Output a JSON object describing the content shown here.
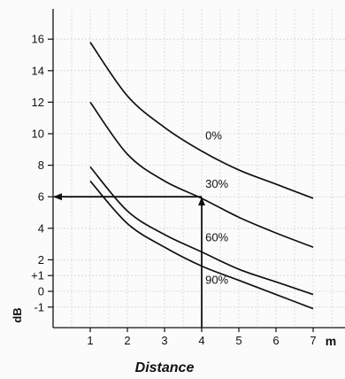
{
  "chart_data": {
    "type": "line",
    "title": "",
    "xlabel": "Distance",
    "x_unit": "m",
    "ylabel": "dB",
    "xlim": [
      0,
      7
    ],
    "ylim": [
      -2,
      17
    ],
    "x_ticks": [
      {
        "value": 1,
        "label": "1"
      },
      {
        "value": 2,
        "label": "2"
      },
      {
        "value": 3,
        "label": "3"
      },
      {
        "value": 4,
        "label": "4"
      },
      {
        "value": 5,
        "label": "5"
      },
      {
        "value": 6,
        "label": "6"
      },
      {
        "value": 7,
        "label": "7"
      }
    ],
    "y_ticks": [
      {
        "value": 16,
        "label": "16"
      },
      {
        "value": 14,
        "label": "14"
      },
      {
        "value": 12,
        "label": "12"
      },
      {
        "value": 10,
        "label": "10"
      },
      {
        "value": 8,
        "label": "8"
      },
      {
        "value": 6,
        "label": "6"
      },
      {
        "value": 4,
        "label": "4"
      },
      {
        "value": 2,
        "label": "2"
      },
      {
        "value": 1,
        "label": "+1"
      },
      {
        "value": 0,
        "label": "0"
      },
      {
        "value": -1,
        "label": "-1"
      }
    ],
    "grid": true,
    "series": [
      {
        "name": "0%",
        "x": [
          1,
          2,
          3,
          4,
          5,
          6,
          7
        ],
        "y": [
          15.8,
          12.4,
          10.4,
          8.9,
          7.7,
          6.8,
          5.9
        ]
      },
      {
        "name": "30%",
        "x": [
          1,
          2,
          3,
          4,
          5,
          6,
          7
        ],
        "y": [
          12.0,
          8.7,
          7.0,
          5.9,
          4.7,
          3.7,
          2.8
        ]
      },
      {
        "name": "60%",
        "x": [
          1,
          2,
          3,
          4,
          5,
          6,
          7
        ],
        "y": [
          7.9,
          5.1,
          3.6,
          2.5,
          1.4,
          0.6,
          -0.2
        ]
      },
      {
        "name": "90%",
        "x": [
          1,
          2,
          3,
          4,
          5,
          6,
          7
        ],
        "y": [
          7.0,
          4.3,
          2.8,
          1.6,
          0.7,
          -0.2,
          -1.1
        ]
      }
    ],
    "annotations": {
      "vertical_arrow": {
        "x": 4,
        "y_from": -2,
        "y_to": 6
      },
      "horizontal_arrow": {
        "y": 6,
        "x_from": 4,
        "x_to": 0
      }
    }
  }
}
